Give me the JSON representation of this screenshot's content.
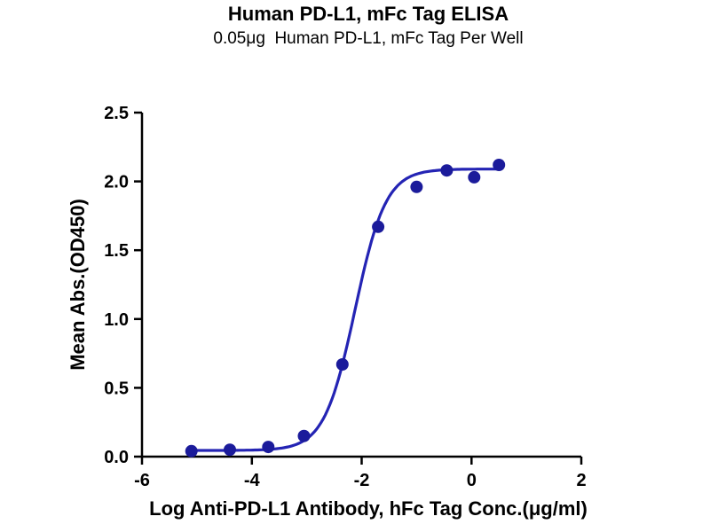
{
  "chart_data": {
    "type": "scatter",
    "title": "Human PD-L1, mFc Tag ELISA",
    "subtitle": "0.05μg  Human PD-L1, mFc Tag Per Well",
    "xlabel": "Log Anti-PD-L1 Antibody, hFc Tag Conc.(μg/ml)",
    "ylabel": "Mean Abs.(OD450)",
    "xlim": [
      -6,
      2
    ],
    "ylim": [
      0,
      2.5
    ],
    "x_ticks": [
      -6,
      -4,
      -2,
      0,
      2
    ],
    "x_tick_labels": [
      "-6",
      "-4",
      "-2",
      "0",
      "2"
    ],
    "y_ticks": [
      0,
      0.5,
      1,
      1.5,
      2,
      2.5
    ],
    "y_tick_labels": [
      "0.0",
      "0.5",
      "1.0",
      "1.5",
      "2.0",
      "2.5"
    ],
    "grid": false,
    "legend": "none",
    "points": {
      "x": [
        -5.1,
        -4.4,
        -3.7,
        -3.05,
        -2.35,
        -1.7,
        -1.0,
        -0.45,
        0.05,
        0.5
      ],
      "y": [
        0.04,
        0.05,
        0.07,
        0.15,
        0.67,
        1.67,
        1.96,
        2.08,
        2.03,
        2.12
      ]
    },
    "curve_fit": {
      "model": "4PL sigmoid",
      "bottom": 0.045,
      "top": 2.09,
      "log_ec50": -2.12,
      "hill": 1.55
    },
    "point_color": "#1b1b9b",
    "curve_color": "#2424b4",
    "axis_color": "#000000"
  }
}
